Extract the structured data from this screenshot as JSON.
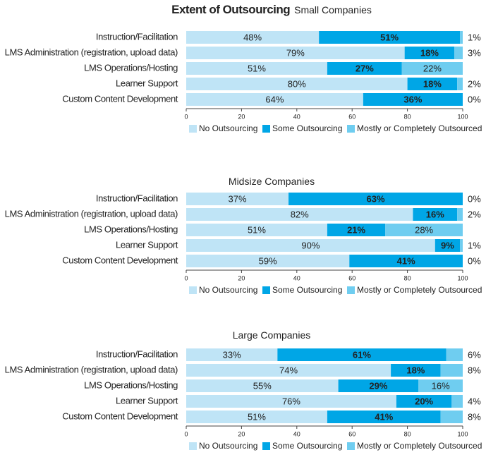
{
  "chart_data": [
    {
      "type": "stacked-barh",
      "title": "Extent of Outsourcing",
      "subtitle": "Small Companies",
      "categories": [
        "Instruction/Facilitation",
        "LMS Administration (registration, upload data)",
        "LMS Operations/Hosting",
        "Learner Support",
        "Custom Content Development"
      ],
      "series": [
        {
          "name": "No Outsourcing",
          "color": "#bfe4f6",
          "values": [
            48,
            79,
            51,
            80,
            64
          ],
          "value_labels": [
            "48%",
            "79%",
            "51%",
            "80%",
            "64%"
          ]
        },
        {
          "name": "Some Outsourcing",
          "color": "#00a6e6",
          "values": [
            51,
            18,
            27,
            18,
            36
          ],
          "value_labels": [
            "51%",
            "18%",
            "27%",
            "18%",
            "36%"
          ]
        },
        {
          "name": "Mostly or Completely Outsourced",
          "color": "#6fcdf0",
          "values": [
            1,
            3,
            22,
            2,
            0
          ],
          "value_labels": [
            "1%",
            "3%",
            "22%",
            "2%",
            "0%"
          ]
        }
      ],
      "xlim": [
        0,
        100
      ],
      "xticks": [
        0,
        20,
        40,
        60,
        80,
        100
      ]
    },
    {
      "type": "stacked-barh",
      "title": "Midsize Companies",
      "categories": [
        "Instruction/Facilitation",
        "LMS Administration (registration, upload data)",
        "LMS Operations/Hosting",
        "Learner Support",
        "Custom Content Development"
      ],
      "series": [
        {
          "name": "No Outsourcing",
          "color": "#bfe4f6",
          "values": [
            37,
            82,
            51,
            90,
            59
          ],
          "value_labels": [
            "37%",
            "82%",
            "51%",
            "90%",
            "59%"
          ]
        },
        {
          "name": "Some Outsourcing",
          "color": "#00a6e6",
          "values": [
            63,
            16,
            21,
            9,
            41
          ],
          "value_labels": [
            "63%",
            "16%",
            "21%",
            "9%",
            "41%"
          ]
        },
        {
          "name": "Mostly or Completely Outsourced",
          "color": "#6fcdf0",
          "values": [
            0,
            2,
            28,
            1,
            0
          ],
          "value_labels": [
            "0%",
            "2%",
            "28%",
            "1%",
            "0%"
          ]
        }
      ],
      "xlim": [
        0,
        100
      ],
      "xticks": [
        0,
        20,
        40,
        60,
        80,
        100
      ]
    },
    {
      "type": "stacked-barh",
      "title": "Large Companies",
      "categories": [
        "Instruction/Facilitation",
        "LMS Administration (registration, upload data)",
        "LMS Operations/Hosting",
        "Learner Support",
        "Custom Content Development"
      ],
      "series": [
        {
          "name": "No Outsourcing",
          "color": "#bfe4f6",
          "values": [
            33,
            74,
            55,
            76,
            51
          ],
          "value_labels": [
            "33%",
            "74%",
            "55%",
            "76%",
            "51%"
          ]
        },
        {
          "name": "Some Outsourcing",
          "color": "#00a6e6",
          "values": [
            61,
            18,
            29,
            20,
            41
          ],
          "value_labels": [
            "61%",
            "18%",
            "29%",
            "20%",
            "41%"
          ]
        },
        {
          "name": "Mostly or Completely Outsourced",
          "color": "#6fcdf0",
          "values": [
            6,
            8,
            16,
            4,
            8
          ],
          "value_labels": [
            "6%",
            "8%",
            "16%",
            "4%",
            "8%"
          ]
        }
      ],
      "xlim": [
        0,
        100
      ],
      "xticks": [
        0,
        20,
        40,
        60,
        80,
        100
      ]
    }
  ]
}
